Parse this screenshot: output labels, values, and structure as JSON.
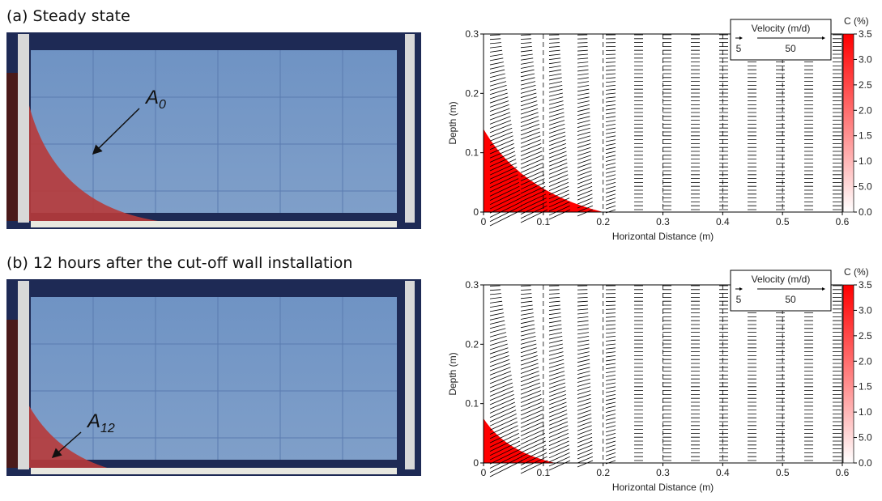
{
  "panels": [
    {
      "title": "(a) Steady state",
      "photo_label": {
        "main": "A",
        "sub": "0"
      },
      "plot": {
        "xlabel": "Horizontal Distance (m)",
        "ylabel": "Depth (m)",
        "xlim": [
          0,
          0.6
        ],
        "xticks": [
          0,
          0.1,
          0.2,
          0.3,
          0.4,
          0.5,
          0.6
        ],
        "ylim": [
          0,
          0.3
        ],
        "yticks": [
          0,
          0.1,
          0.2,
          0.3
        ],
        "legend_title": "Velocity (m/d)",
        "legend_scale": [
          5,
          50
        ],
        "colorbar_title": "C (%)",
        "colorbar_labels": [
          "3.5",
          "3.0",
          "2.5",
          "2.0",
          "1.5",
          "1.0",
          "5.0",
          "0.0"
        ],
        "plume_extent": 0.2,
        "plume_height": 0.14
      }
    },
    {
      "title": "(b) 12 hours after the cut-off wall installation",
      "photo_label": {
        "main": "A",
        "sub": "12"
      },
      "plot": {
        "xlabel": "Horizontal Distance (m)",
        "ylabel": "Depth (m)",
        "xlim": [
          0,
          0.6
        ],
        "xticks": [
          0,
          0.1,
          0.2,
          0.3,
          0.4,
          0.5,
          0.6
        ],
        "ylim": [
          0,
          0.3
        ],
        "yticks": [
          0,
          0.1,
          0.2,
          0.3
        ],
        "legend_title": "Velocity (m/d)",
        "legend_scale": [
          5,
          50
        ],
        "colorbar_title": "C (%)",
        "colorbar_labels": [
          "3.5",
          "3.0",
          "2.5",
          "2.0",
          "1.5",
          "1.0",
          "5.0",
          "0.0"
        ],
        "plume_extent": 0.12,
        "plume_height": 0.075
      }
    }
  ]
}
